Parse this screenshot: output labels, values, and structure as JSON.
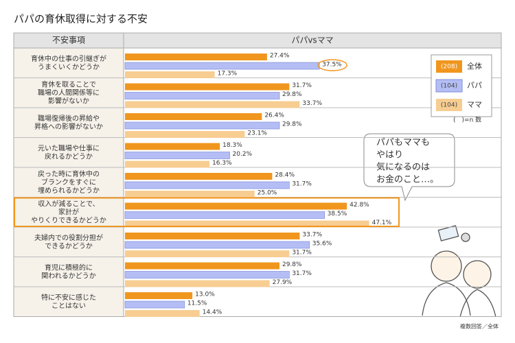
{
  "chart_data": {
    "type": "bar",
    "orientation": "horizontal",
    "title": "パパの育休取得に対する不安",
    "column_headers": [
      "不安事項",
      "パパvsママ"
    ],
    "categories": [
      [
        "育休中の仕事の引継ぎが",
        "うまくいくかどうか"
      ],
      [
        "育休を取ることで",
        "職場の人間関係等に",
        "影響がないか"
      ],
      [
        "職場復帰後の昇給や",
        "昇格への影響がないか"
      ],
      [
        "元いた職場や仕事に",
        "戻れるかどうか"
      ],
      [
        "戻った時に育休中の",
        "ブランクをすぐに",
        "埋められるかどうか"
      ],
      [
        "収入が減ることで、",
        "家計が",
        "やりくりできるかどうか"
      ],
      [
        "夫婦内での役割分担が",
        "できるかどうか"
      ],
      [
        "育児に積極的に",
        "関われるかどうか"
      ],
      [
        "特に不安に感じた",
        "ことはない"
      ]
    ],
    "series": [
      {
        "name": "全体",
        "sample": "(208)",
        "color": "#f0961e",
        "values": [
          27.4,
          31.7,
          26.4,
          18.3,
          28.4,
          42.8,
          33.7,
          29.8,
          13.0
        ],
        "value_labels": [
          "27.4%",
          "31.7%",
          "26.4%",
          "18.3%",
          "28.4%",
          "42.8%",
          "33.7%",
          "29.8%",
          "13.0%"
        ]
      },
      {
        "name": "パパ",
        "sample": "(104)",
        "color": "#b4bef5",
        "values": [
          37.5,
          29.8,
          29.8,
          20.2,
          31.7,
          38.5,
          35.6,
          31.7,
          11.5
        ],
        "value_labels": [
          "37.5%",
          "29.8%",
          "29.8%",
          "20.2%",
          "31.7%",
          "38.5%",
          "35.6%",
          "31.7%",
          "11.5%"
        ]
      },
      {
        "name": "ママ",
        "sample": "(104)",
        "color": "#f7cd92",
        "values": [
          17.3,
          33.7,
          23.1,
          16.3,
          25.0,
          47.1,
          31.7,
          27.9,
          14.4
        ],
        "value_labels": [
          "17.3%",
          "33.7%",
          "23.1%",
          "16.3%",
          "25.0%",
          "47.1%",
          "31.7%",
          "27.9%",
          "14.4%"
        ]
      }
    ],
    "legend_note": "(　)=n 数",
    "highlight_category": 5,
    "highlight_point": {
      "series": 1,
      "index": 0
    },
    "bubble_text": [
      "パパもママも",
      "やはり",
      "気になるのは",
      "お金のこと…。"
    ],
    "footnote": "複数回答／全体"
  }
}
